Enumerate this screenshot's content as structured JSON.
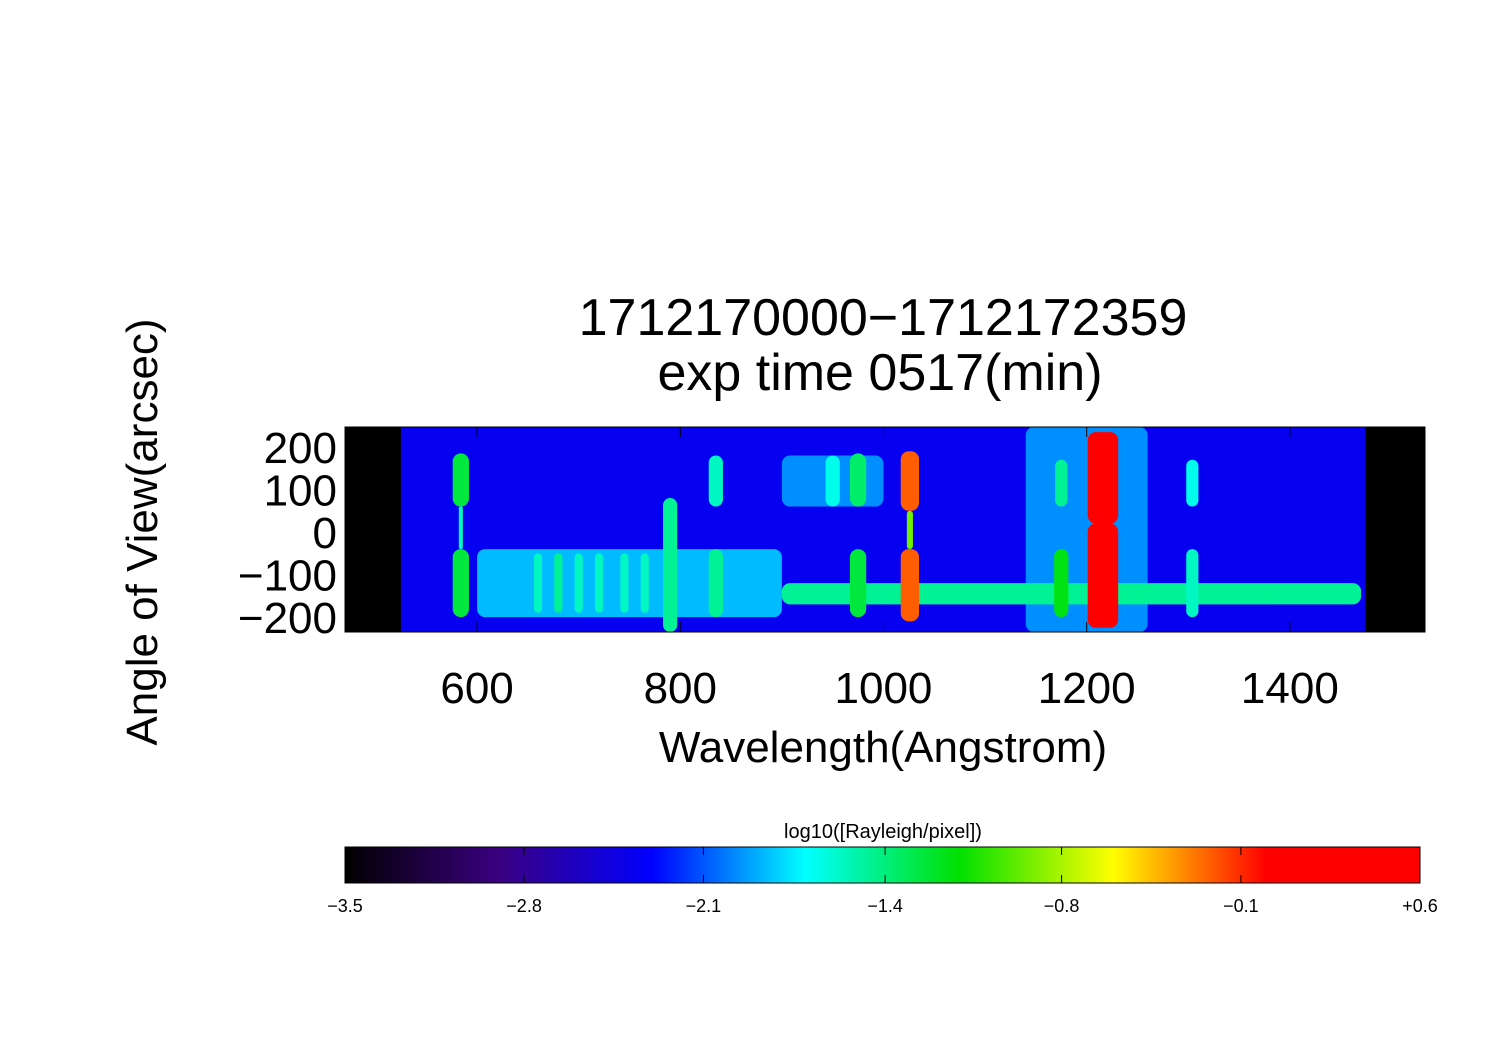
{
  "chart_data": {
    "type": "heatmap",
    "title": [
      "1712170000−1712172359",
      "exp time 0517(min)"
    ],
    "xlabel": "Wavelength(Angstrom)",
    "ylabel": "Angle of View(arcsec)",
    "xlim": [
      470,
      1533
    ],
    "ylim": [
      -235,
      247
    ],
    "xticks": [
      600,
      800,
      1000,
      1200,
      1400
    ],
    "yticks": [
      {
        "value": -200,
        "label": "−200"
      },
      {
        "value": -100,
        "label": "−100"
      },
      0,
      100,
      200
    ],
    "data_xlim": [
      525,
      1474
    ],
    "background_value": -2.4,
    "features": [
      {
        "x": 1200,
        "width": 120,
        "y": [
          -235,
          247
        ],
        "value": -2.0
      },
      {
        "x": 950,
        "width": 100,
        "y": [
          60,
          180
        ],
        "value": -2.0
      },
      {
        "x": 750,
        "width": 300,
        "y": [
          -200,
          -40
        ],
        "value": -1.9
      },
      {
        "x": 1185,
        "width": 570,
        "y": [
          -170,
          -120
        ],
        "value": -1.5
      },
      {
        "x": 584,
        "width": 16,
        "y": [
          60,
          185
        ],
        "value": -1.3
      },
      {
        "x": 584,
        "width": 16,
        "y": [
          -200,
          -40
        ],
        "value": -1.3
      },
      {
        "x": 584,
        "width": 4,
        "y": [
          -40,
          60
        ],
        "value": -1.6
      },
      {
        "x": 660,
        "width": 8,
        "y": [
          -190,
          -50
        ],
        "value": -1.6
      },
      {
        "x": 680,
        "width": 8,
        "y": [
          -190,
          -50
        ],
        "value": -1.5
      },
      {
        "x": 700,
        "width": 8,
        "y": [
          -190,
          -50
        ],
        "value": -1.6
      },
      {
        "x": 720,
        "width": 8,
        "y": [
          -190,
          -50
        ],
        "value": -1.6
      },
      {
        "x": 745,
        "width": 8,
        "y": [
          -190,
          -50
        ],
        "value": -1.6
      },
      {
        "x": 765,
        "width": 8,
        "y": [
          -190,
          -50
        ],
        "value": -1.6
      },
      {
        "x": 790,
        "width": 14,
        "y": [
          -235,
          80
        ],
        "value": -1.5
      },
      {
        "x": 835,
        "width": 14,
        "y": [
          60,
          180
        ],
        "value": -1.6
      },
      {
        "x": 835,
        "width": 14,
        "y": [
          -200,
          -40
        ],
        "value": -1.5
      },
      {
        "x": 950,
        "width": 14,
        "y": [
          60,
          180
        ],
        "value": -1.7
      },
      {
        "x": 975,
        "width": 16,
        "y": [
          60,
          185
        ],
        "value": -1.4
      },
      {
        "x": 975,
        "width": 16,
        "y": [
          -200,
          -40
        ],
        "value": -1.3
      },
      {
        "x": 1026,
        "width": 6,
        "y": [
          -40,
          50
        ],
        "value": -0.9
      },
      {
        "x": 1026,
        "width": 18,
        "y": [
          50,
          190
        ],
        "value": -0.2
      },
      {
        "x": 1026,
        "width": 18,
        "y": [
          -210,
          -40
        ],
        "value": -0.2
      },
      {
        "x": 1175,
        "width": 12,
        "y": [
          60,
          170
        ],
        "value": -1.5
      },
      {
        "x": 1175,
        "width": 14,
        "y": [
          -200,
          -40
        ],
        "value": -1.2
      },
      {
        "x": 1216,
        "width": 30,
        "y": [
          20,
          235
        ],
        "value": 0.4
      },
      {
        "x": 1216,
        "width": 30,
        "y": [
          -225,
          20
        ],
        "value": 0.4
      },
      {
        "x": 1304,
        "width": 12,
        "y": [
          60,
          170
        ],
        "value": -1.7
      },
      {
        "x": 1304,
        "width": 12,
        "y": [
          -200,
          -40
        ],
        "value": -1.6
      }
    ],
    "colorbar": {
      "label": "log10([Rayleigh/pixel])",
      "zlim": [
        -3.5,
        0.6
      ],
      "zticks": [
        {
          "value": -3.5,
          "label": "−3.5"
        },
        {
          "value": -2.817,
          "label": "−2.8"
        },
        {
          "value": -2.133,
          "label": "−2.1"
        },
        {
          "value": -1.44,
          "label": "−1.4"
        },
        {
          "value": -0.767,
          "label": "−0.8"
        },
        {
          "value": -0.083,
          "label": "−0.1"
        },
        {
          "value": 0.6,
          "label": "+0.6"
        }
      ],
      "colormap": [
        "#000000",
        "#3a0080",
        "#0000ff",
        "#00ffff",
        "#00e000",
        "#ffff00",
        "#ff0000",
        "#ff0000"
      ]
    }
  }
}
